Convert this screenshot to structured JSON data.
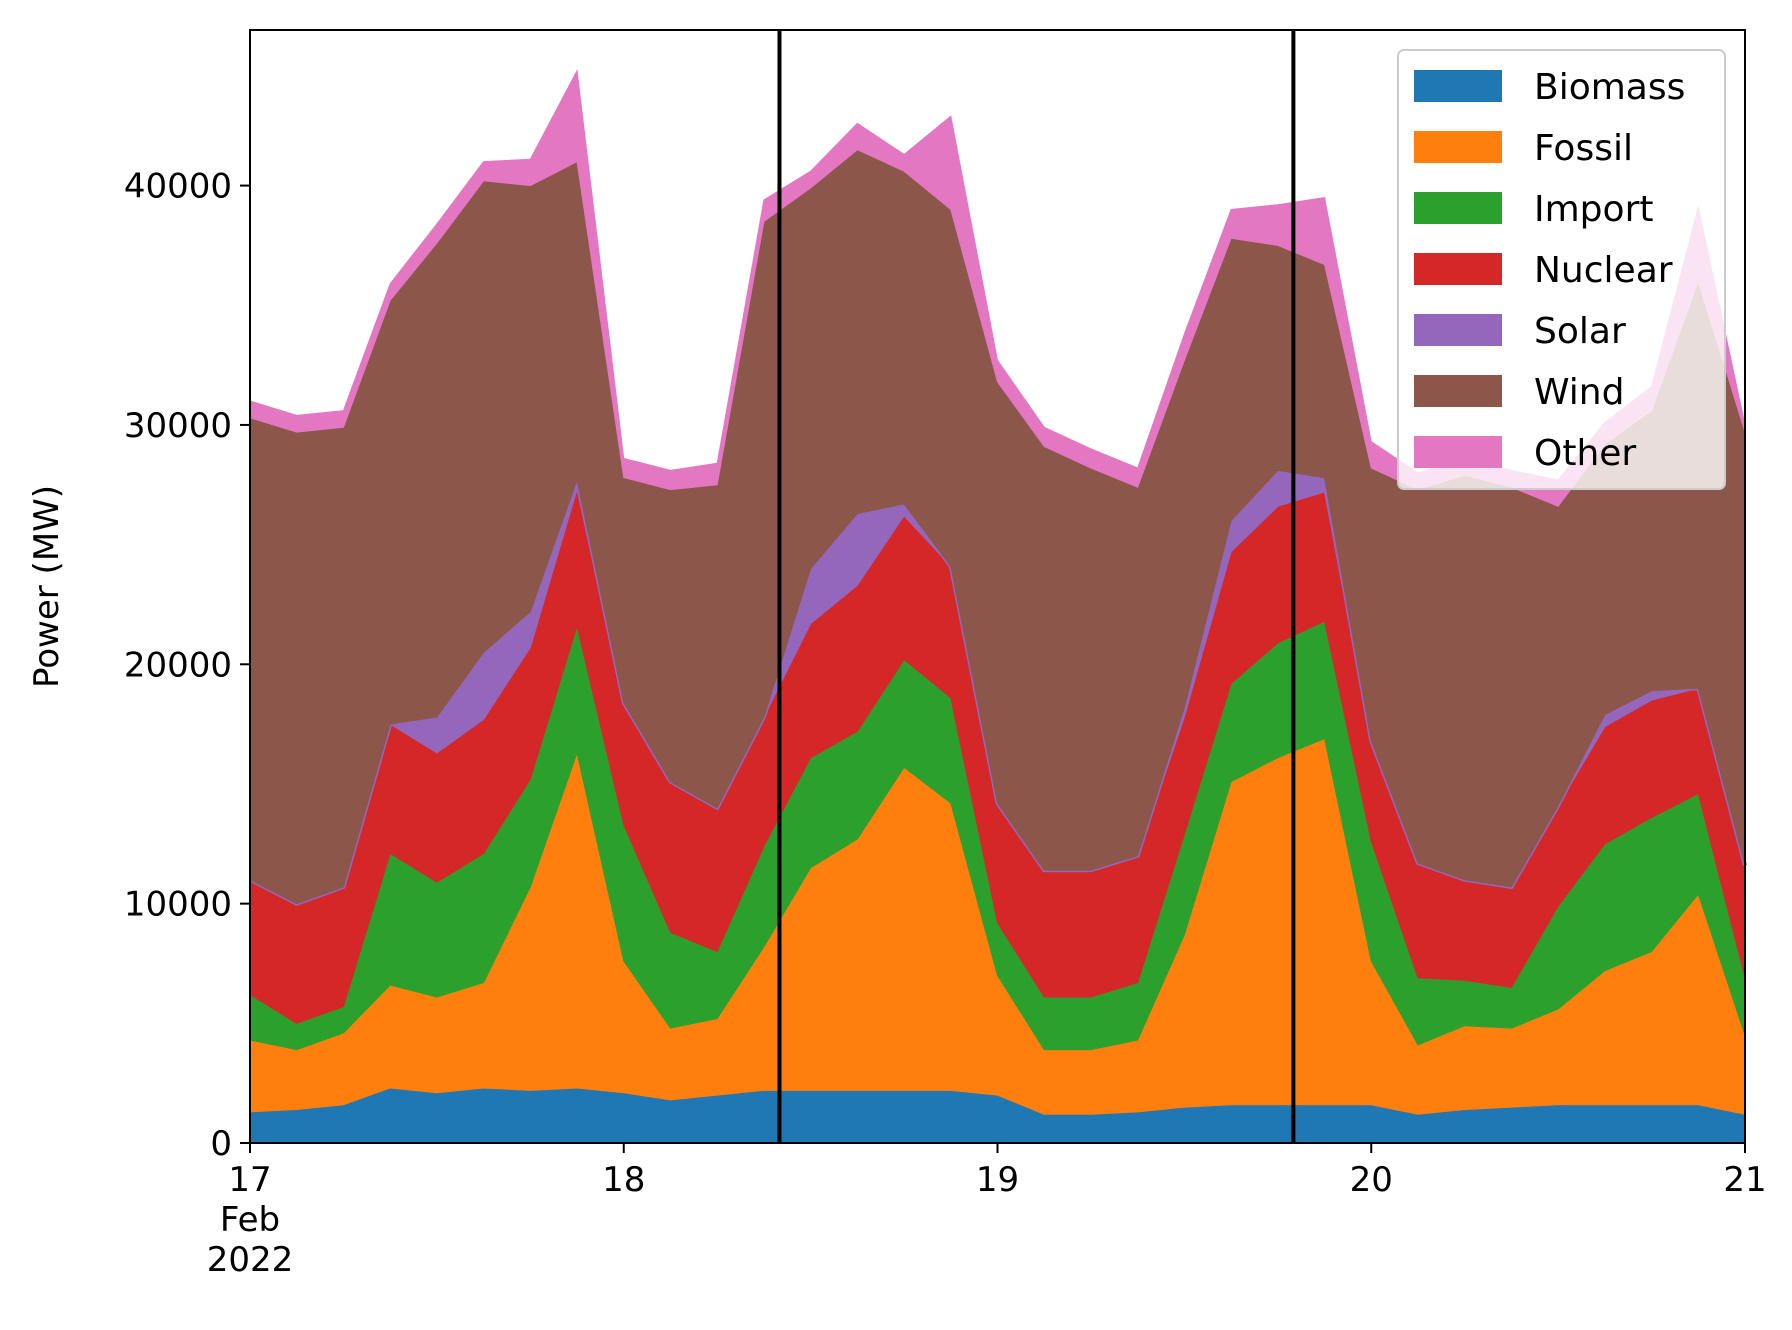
{
  "chart_data": {
    "type": "area",
    "stacked": true,
    "ylabel": "Power (MW)",
    "xlim": [
      "2022-02-17",
      "2022-02-21"
    ],
    "ylim": [
      0,
      46500
    ],
    "y_ticks": [
      0,
      10000,
      20000,
      30000,
      40000
    ],
    "y_tick_labels": [
      "0",
      "10000",
      "20000",
      "30000",
      "40000"
    ],
    "x_ticks": [
      {
        "at": "2022-02-17",
        "lines": [
          "17",
          "Feb",
          "2022"
        ]
      },
      {
        "at": "2022-02-18",
        "lines": [
          "18"
        ]
      },
      {
        "at": "2022-02-19",
        "lines": [
          "19"
        ]
      },
      {
        "at": "2022-02-20",
        "lines": [
          "20"
        ]
      },
      {
        "at": "2022-02-21",
        "lines": [
          "21"
        ]
      }
    ],
    "grid": false,
    "legend_position": "top-right",
    "vertical_lines": [
      "2022-02-18 10:00",
      "2022-02-19 19:00"
    ],
    "x": [
      "2022-02-17 00:00",
      "2022-02-17 03:00",
      "2022-02-17 06:00",
      "2022-02-17 09:00",
      "2022-02-17 12:00",
      "2022-02-17 15:00",
      "2022-02-17 18:00",
      "2022-02-17 21:00",
      "2022-02-18 00:00",
      "2022-02-18 03:00",
      "2022-02-18 06:00",
      "2022-02-18 09:00",
      "2022-02-18 12:00",
      "2022-02-18 15:00",
      "2022-02-18 18:00",
      "2022-02-18 21:00",
      "2022-02-19 00:00",
      "2022-02-19 03:00",
      "2022-02-19 06:00",
      "2022-02-19 09:00",
      "2022-02-19 12:00",
      "2022-02-19 15:00",
      "2022-02-19 18:00",
      "2022-02-19 21:00",
      "2022-02-20 00:00",
      "2022-02-20 03:00",
      "2022-02-20 06:00",
      "2022-02-20 09:00",
      "2022-02-20 12:00",
      "2022-02-20 15:00",
      "2022-02-20 18:00",
      "2022-02-20 21:00",
      "2022-02-21 00:00"
    ],
    "series": [
      {
        "name": "Biomass",
        "color": "#1f77b4",
        "values": [
          1300,
          1400,
          1600,
          2300,
          2100,
          2300,
          2200,
          2300,
          2100,
          1800,
          2000,
          2200,
          2200,
          2200,
          2200,
          2200,
          2000,
          1200,
          1200,
          1300,
          1500,
          1600,
          1600,
          1600,
          1600,
          1200,
          1400,
          1500,
          1600,
          1600,
          1600,
          1600,
          1200
        ]
      },
      {
        "name": "Fossil",
        "color": "#ff7f0e",
        "values": [
          3000,
          2500,
          3000,
          4300,
          4000,
          4400,
          8500,
          14000,
          5500,
          3000,
          3200,
          6000,
          9300,
          10500,
          13500,
          12000,
          5000,
          2700,
          2700,
          3000,
          7200,
          13500,
          14500,
          15300,
          6000,
          2900,
          3500,
          3300,
          4000,
          5600,
          6400,
          8800,
          3300
        ]
      },
      {
        "name": "Import",
        "color": "#2ca02c",
        "values": [
          1900,
          1100,
          1100,
          5500,
          4800,
          5400,
          4500,
          5300,
          5700,
          4000,
          2800,
          4200,
          4600,
          4500,
          4500,
          4400,
          2200,
          2200,
          2200,
          2400,
          4200,
          4100,
          4800,
          4900,
          5000,
          2800,
          1900,
          1700,
          4300,
          5300,
          5600,
          4200,
          2400
        ]
      },
      {
        "name": "Nuclear",
        "color": "#d62728",
        "values": [
          4800,
          5000,
          5000,
          5400,
          5400,
          5600,
          5500,
          5700,
          5100,
          6300,
          6000,
          5400,
          5600,
          6100,
          6000,
          5500,
          5000,
          5300,
          5300,
          5300,
          4900,
          5500,
          5700,
          5400,
          4200,
          4800,
          4200,
          4200,
          4200,
          4900,
          4900,
          4400,
          4700
        ]
      },
      {
        "name": "Solar",
        "color": "#9467bd",
        "values": [
          0,
          0,
          0,
          0,
          1500,
          2800,
          1500,
          400,
          0,
          0,
          0,
          0,
          2300,
          3000,
          500,
          0,
          0,
          0,
          0,
          0,
          400,
          1300,
          1500,
          600,
          0,
          0,
          0,
          0,
          0,
          500,
          400,
          0,
          0
        ]
      },
      {
        "name": "Wind",
        "color": "#8c564b",
        "values": [
          19300,
          19700,
          19200,
          17700,
          19800,
          19700,
          17800,
          13300,
          9400,
          12200,
          13500,
          20700,
          15900,
          15200,
          13900,
          14900,
          17600,
          17700,
          16800,
          15400,
          14500,
          11800,
          9400,
          8900,
          11400,
          15600,
          16900,
          16700,
          12500,
          11300,
          11700,
          17000,
          18100
        ]
      },
      {
        "name": "Other",
        "color": "#e377c2",
        "values": [
          700,
          700,
          700,
          700,
          800,
          800,
          1100,
          3800,
          800,
          800,
          900,
          900,
          700,
          1100,
          700,
          3900,
          900,
          800,
          800,
          800,
          1100,
          1200,
          1700,
          2800,
          1100,
          700,
          700,
          700,
          1100,
          900,
          1000,
          3100,
          300
        ]
      }
    ]
  }
}
